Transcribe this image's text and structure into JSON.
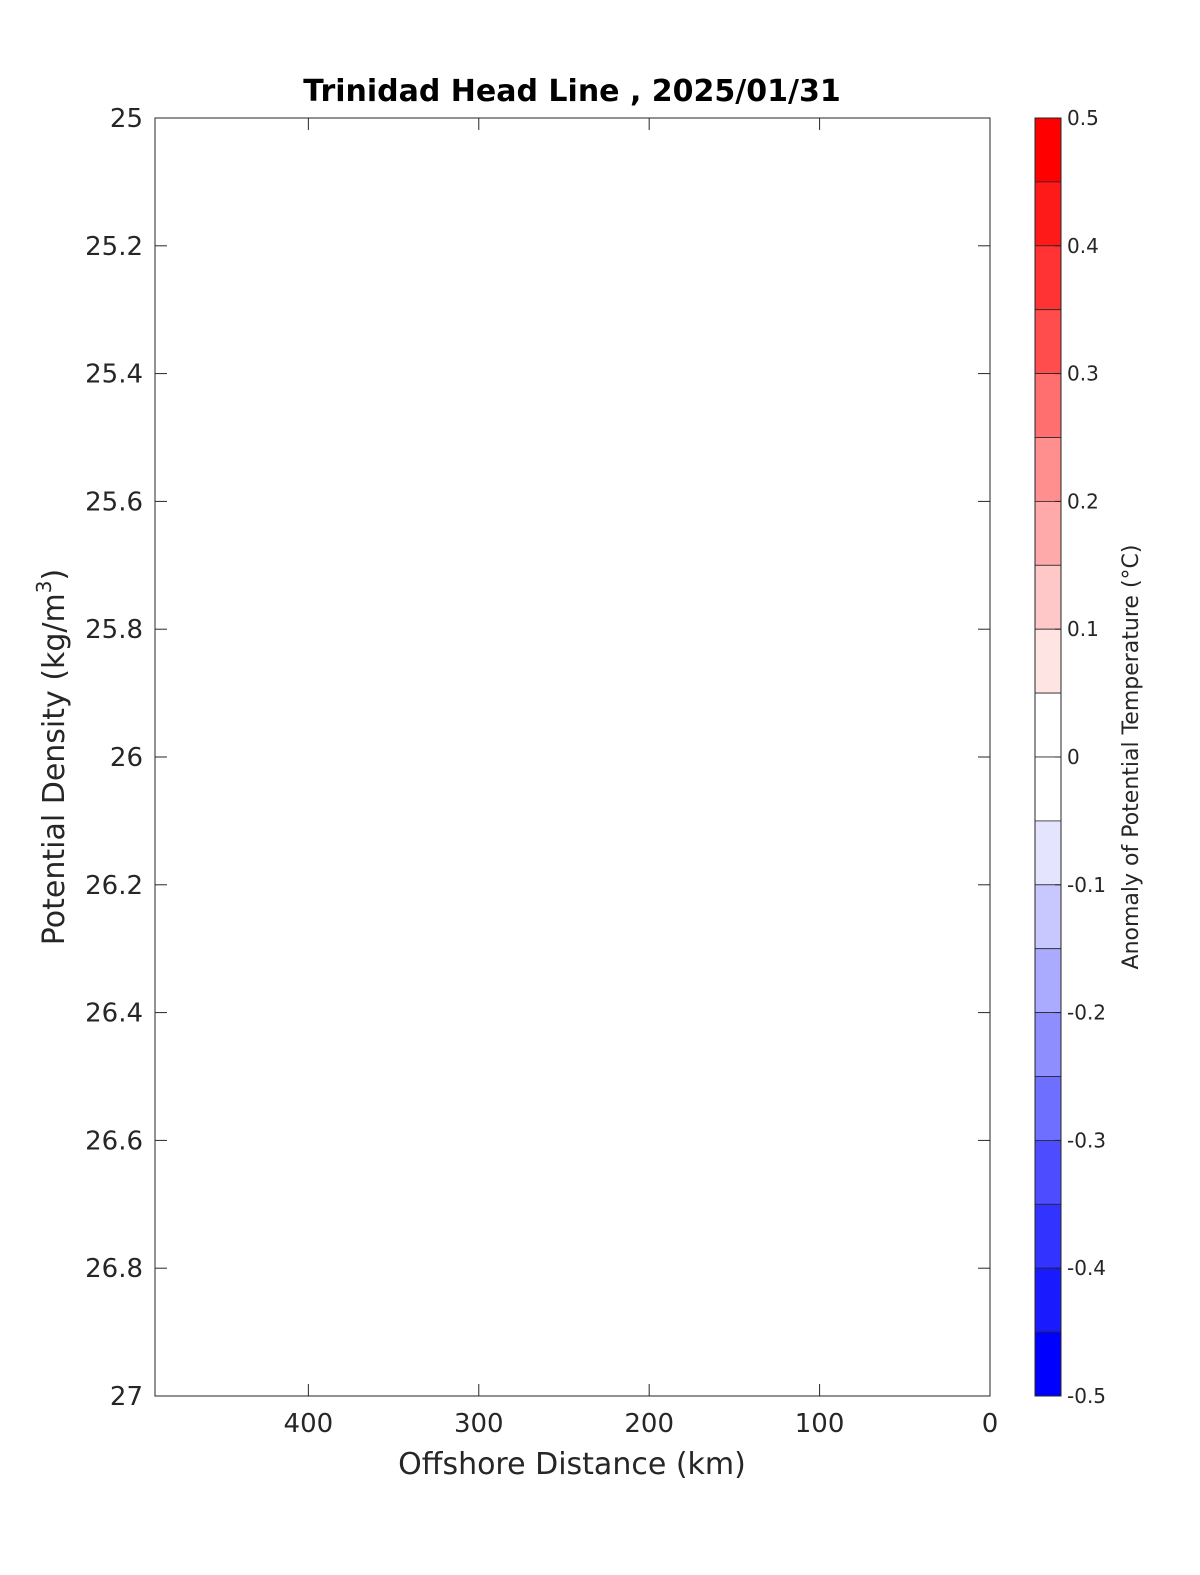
{
  "chart_data": {
    "type": "heatmap",
    "title": "Trinidad Head Line , 2025/01/31",
    "xlabel": "Offshore Distance (km)",
    "ylabel_main": "Potential Density (kg/m",
    "ylabel_sup": "3",
    "ylabel_close": ")",
    "xlim": [
      490,
      0
    ],
    "ylim": [
      25,
      27
    ],
    "x_reversed": true,
    "y_reversed": true,
    "xticks": [
      400,
      300,
      200,
      100,
      0
    ],
    "yticks": [
      25,
      25.2,
      25.4,
      25.6,
      25.8,
      26,
      26.2,
      26.4,
      26.6,
      26.8,
      27
    ],
    "xtick_labels": [
      "400",
      "300",
      "200",
      "100",
      "0"
    ],
    "ytick_labels": [
      "25",
      "25.2",
      "25.4",
      "25.6",
      "25.8",
      "26",
      "26.2",
      "26.4",
      "26.6",
      "26.8",
      "27"
    ],
    "data": [],
    "grid": false,
    "colorbar": {
      "label": "Anomaly of Potential Temperature (°C)",
      "range": [
        -0.5,
        0.5
      ],
      "ticks": [
        0.5,
        0.4,
        0.3,
        0.2,
        0.1,
        0,
        -0.1,
        -0.2,
        -0.3,
        -0.4,
        -0.5
      ],
      "tick_labels": [
        "0.5",
        "0.4",
        "0.3",
        "0.2",
        "0.1",
        "0",
        "-0.1",
        "-0.2",
        "-0.3",
        "-0.4",
        "-0.5"
      ],
      "colors_top_to_bottom": [
        "#ff0000",
        "#ff1a1a",
        "#ff3333",
        "#ff4d4d",
        "#ff6f6f",
        "#ff8e8e",
        "#ffaaaa",
        "#ffc8c8",
        "#ffe4e4",
        "#ffffff",
        "#ffffff",
        "#e4e4ff",
        "#c8c8ff",
        "#aaaaff",
        "#8e8eff",
        "#6f6fff",
        "#4d4dff",
        "#3333ff",
        "#1a1aff",
        "#0000ff"
      ]
    }
  }
}
